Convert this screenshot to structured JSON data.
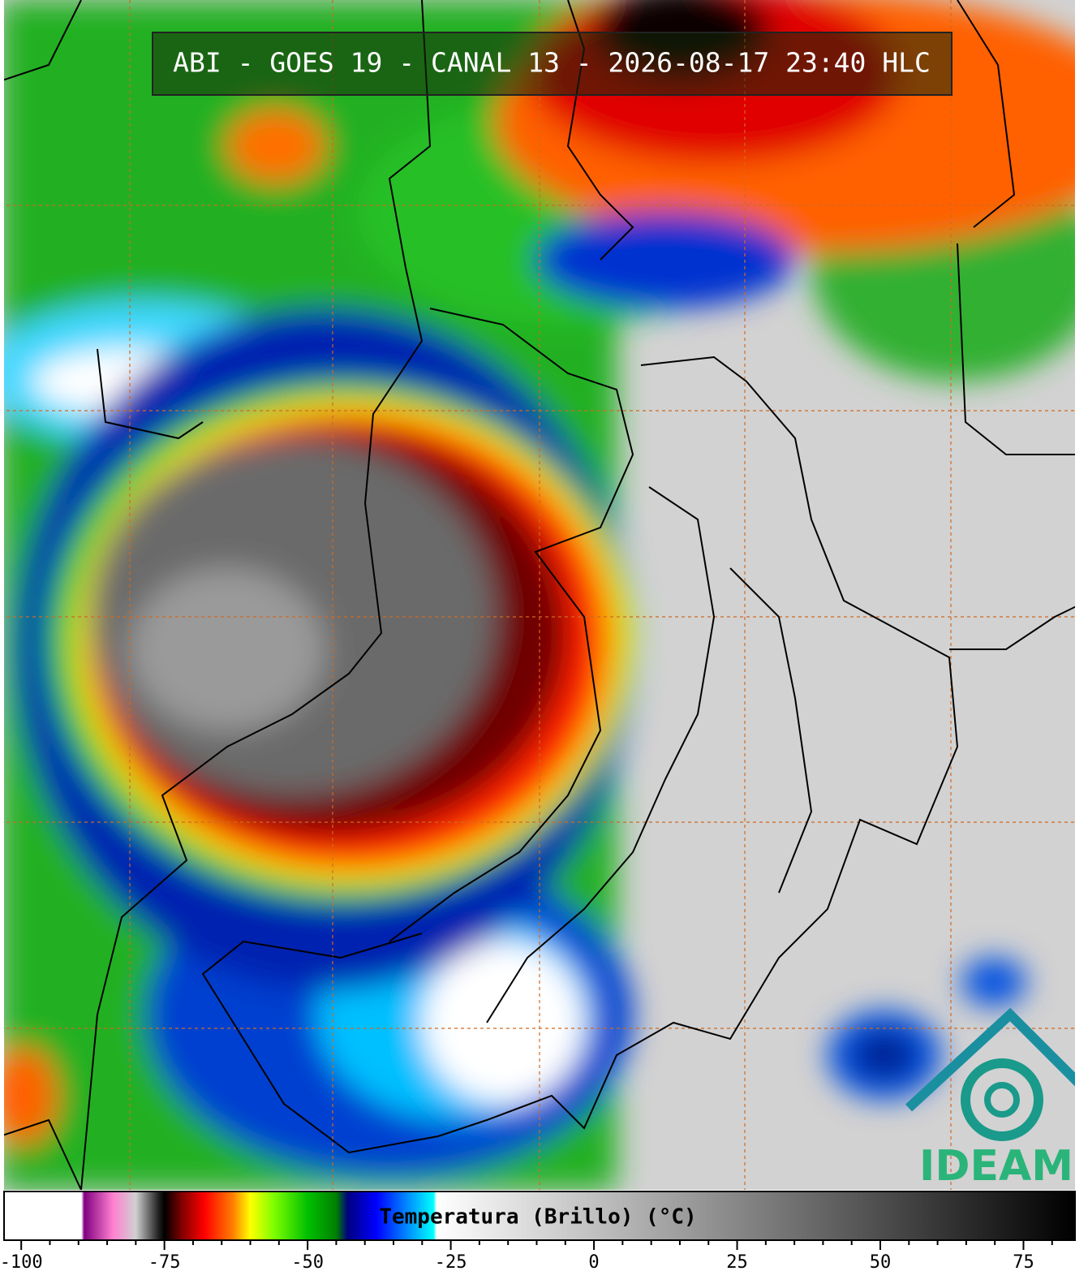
{
  "title": "ABI - GOES 19 - CANAL 13 - 2026-08-17 23:40 HLC",
  "logo": "IDEAM",
  "colorbar": {
    "label": "Temperatura (Brillo) (°C)",
    "xlim": [
      -103,
      84
    ],
    "xticks": [
      -100,
      -75,
      -50,
      -25,
      0,
      25,
      50,
      75
    ],
    "minor_ticks": [
      -95,
      -90,
      -85,
      -80,
      -70,
      -65,
      -60,
      -55,
      -45,
      -40,
      -35,
      -30,
      -20,
      -15,
      -10,
      -5,
      5,
      10,
      15,
      20,
      30,
      35,
      40,
      45,
      55,
      60,
      65,
      70,
      80
    ],
    "colormap": [
      {
        "value": -103,
        "color": "#ffffff"
      },
      {
        "value": -89.5,
        "color": "#ffffff"
      },
      {
        "value": -89,
        "color": "#800080"
      },
      {
        "value": -84,
        "color": "#ff80d0"
      },
      {
        "value": -80,
        "color": "#d0d0d0"
      },
      {
        "value": -76,
        "color": "#202020"
      },
      {
        "value": -75,
        "color": "#000000"
      },
      {
        "value": -72,
        "color": "#800000"
      },
      {
        "value": -68,
        "color": "#ff0000"
      },
      {
        "value": -63,
        "color": "#ff8000"
      },
      {
        "value": -60,
        "color": "#ffff00"
      },
      {
        "value": -56,
        "color": "#80ff00"
      },
      {
        "value": -50,
        "color": "#00c000"
      },
      {
        "value": -45,
        "color": "#008000"
      },
      {
        "value": -43,
        "color": "#000080"
      },
      {
        "value": -38,
        "color": "#0000ff"
      },
      {
        "value": -33,
        "color": "#0080ff"
      },
      {
        "value": -28,
        "color": "#00ffff"
      },
      {
        "value": -27.5,
        "color": "#ffffff"
      },
      {
        "value": 84,
        "color": "#000000"
      }
    ]
  }
}
